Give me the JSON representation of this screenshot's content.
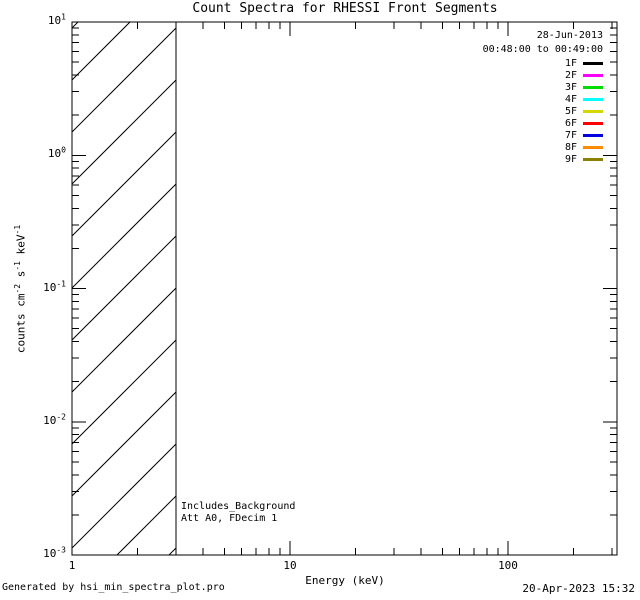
{
  "chart_data": {
    "type": "line",
    "title": "Count Spectra for RHESSI Front Segments",
    "xlabel": "Energy (keV)",
    "ylabel": "counts cm^-2 s^-1 keV^-1",
    "ylabel_parts": [
      [
        "text",
        "counts cm"
      ],
      [
        "sup",
        "-2"
      ],
      [
        "text",
        " s"
      ],
      [
        "sup",
        "-1"
      ],
      [
        "text",
        " keV"
      ],
      [
        "sup",
        "-1"
      ]
    ],
    "x_scale": "log",
    "y_scale": "log",
    "xlim": [
      1,
      316
    ],
    "ylim": [
      0.001,
      10
    ],
    "x_major_ticks": [
      1,
      10,
      100
    ],
    "x_tick_labels": [
      "1",
      "10",
      "100"
    ],
    "y_tick_exponents": [
      1,
      0,
      -1,
      -2,
      -3
    ],
    "grid": false,
    "legend_position": "top-right",
    "series": [],
    "hatched_region": {
      "x_min": 1,
      "x_max": 3,
      "pattern": "diagonal-lines-45deg"
    },
    "annotations": [
      "Includes_Background",
      "Att A0, FDecim 1"
    ],
    "frame_color": "#000000",
    "background_color": "#ffffff"
  },
  "legend": {
    "date": "28-Jun-2013",
    "time_range": "00:48:00 to 00:49:00",
    "entries": [
      {
        "label": "1F",
        "color": "#000000"
      },
      {
        "label": "2F",
        "color": "#ff00ff"
      },
      {
        "label": "3F",
        "color": "#00dc00"
      },
      {
        "label": "4F",
        "color": "#00ffff"
      },
      {
        "label": "5F",
        "color": "#d6d600"
      },
      {
        "label": "6F",
        "color": "#ff0000"
      },
      {
        "label": "7F",
        "color": "#0000e0"
      },
      {
        "label": "8F",
        "color": "#ff8c00"
      },
      {
        "label": "9F",
        "color": "#8c8000"
      }
    ]
  },
  "footer": {
    "left": "Generated by hsi_min_spectra_plot.pro",
    "right": "20-Apr-2023 15:32"
  }
}
